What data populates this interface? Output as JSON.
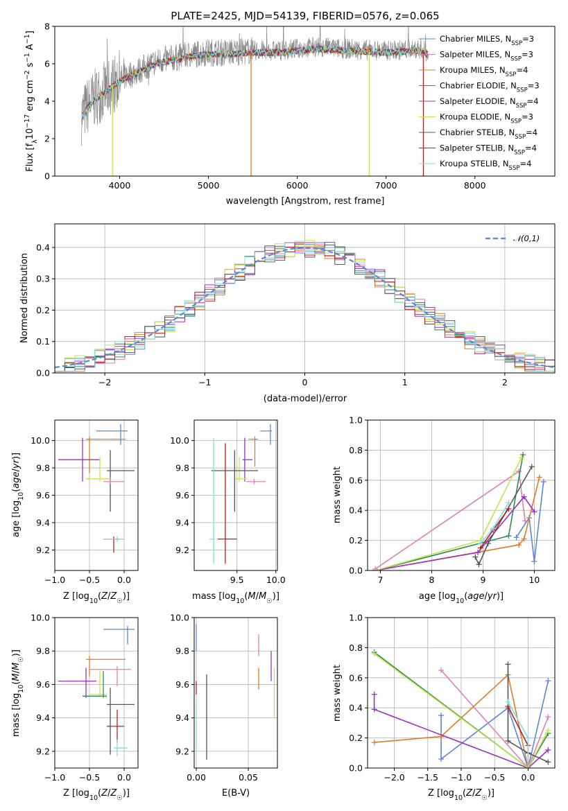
{
  "title": "PLATE=2425, MJD=54139, FIBERID=0576, z=0.065",
  "colors": {
    "chabrier_miles": "#5b86d9",
    "salpeter_miles": "#e07fb6",
    "kroupa_miles": "#e07b24",
    "chabrier_elodie": "#2e8b57",
    "salpeter_elodie": "#9b30c0",
    "kroupa_elodie": "#c6e24d",
    "chabrier_stelib": "#555555",
    "salpeter_stelib": "#b81f1f",
    "kroupa_stelib": "#7fdde3",
    "gaussian": "#5b86d9",
    "data": "#888888"
  },
  "chart_data": [
    {
      "type": "line",
      "id": "spectrum",
      "xlabel": "wavelength [Angstrom, rest frame]",
      "ylabel": "Flux [f_λ 10^-17 erg cm^-2 s^-1 A^-1]",
      "xlim": [
        3270,
        8900
      ],
      "ylim": [
        0,
        8
      ],
      "xticks": [
        4000,
        5000,
        6000,
        7000,
        8000
      ],
      "yticks": [
        0,
        2,
        4,
        6,
        8
      ],
      "grid": false,
      "legend_position": "right",
      "legend": [
        {
          "name": "Chabrier MILES",
          "nssp": 3
        },
        {
          "name": "Salpeter MILES",
          "nssp": 3
        },
        {
          "name": "Kroupa MILES",
          "nssp": 4
        },
        {
          "name": "Chabrier ELODIE",
          "nssp": 3
        },
        {
          "name": "Salpeter ELODIE",
          "nssp": 4
        },
        {
          "name": "Kroupa ELODIE",
          "nssp": 3
        },
        {
          "name": "Chabrier STELIB",
          "nssp": 4
        },
        {
          "name": "Salpeter STELIB",
          "nssp": 4
        },
        {
          "name": "Kroupa STELIB",
          "nssp": 4
        }
      ],
      "continuum": {
        "x": [
          3570,
          3650,
          3750,
          3850,
          3950,
          4050,
          4200,
          4400,
          4600,
          4800,
          5000,
          5200,
          5500,
          5800,
          6000,
          6200,
          6500,
          6800,
          7000,
          7200,
          7400,
          7500
        ],
        "y": [
          3.2,
          3.8,
          4.3,
          4.6,
          5.0,
          5.3,
          5.6,
          6.1,
          6.3,
          6.5,
          6.6,
          6.6,
          6.7,
          6.7,
          6.8,
          6.9,
          6.8,
          6.75,
          6.7,
          6.75,
          6.8,
          6.5
        ]
      },
      "model_dropouts": [
        {
          "x": 3920,
          "series": "kroupa_elodie"
        },
        {
          "x": 5480,
          "series": "kroupa_miles"
        },
        {
          "x": 6810,
          "series": "kroupa_elodie"
        },
        {
          "x": 7420,
          "series": "salpeter_stelib"
        }
      ]
    },
    {
      "type": "histogram",
      "id": "residuals",
      "xlabel": "(data-model)/error",
      "ylabel": "Normed distribution",
      "xlim": [
        -2.5,
        2.5
      ],
      "ylim": [
        0,
        0.475
      ],
      "xticks": [
        -2,
        -1,
        0,
        1,
        2
      ],
      "yticks": [
        0.0,
        0.1,
        0.2,
        0.3,
        0.4
      ],
      "grid": true,
      "legend_position": "top-right",
      "legend": [
        {
          "name": "𝒩(0,1)",
          "style": "dashed"
        }
      ],
      "bin_width": 0.1
    },
    {
      "type": "errorbar",
      "id": "age_vs_z",
      "xlabel": "Z [log10(Z/Z☉)]",
      "ylabel": "age  [log10(age/yr)]",
      "xlim": [
        -1.0,
        0.2
      ],
      "ylim": [
        9.05,
        10.15
      ],
      "xticks": [
        -1.0,
        -0.5,
        0.0
      ],
      "yticks": [
        9.2,
        9.4,
        9.6,
        9.8,
        10.0
      ],
      "grid": true,
      "points": [
        {
          "series": "chabrier_miles",
          "x": -0.05,
          "y": 10.07,
          "xerr": [
            0.35,
            0.1
          ],
          "yerr": [
            0.1,
            0.05
          ]
        },
        {
          "series": "kroupa_miles",
          "x": -0.5,
          "y": 10.01,
          "xerr": [
            0.05,
            0.52
          ],
          "yerr": [
            0.25,
            0.02
          ]
        },
        {
          "series": "salpeter_elodie",
          "x": -0.6,
          "y": 9.86,
          "xerr": [
            0.35,
            0.25
          ],
          "yerr": [
            0.16,
            0.16
          ]
        },
        {
          "series": "kroupa_elodie",
          "x": -0.35,
          "y": 9.72,
          "xerr": [
            0.2,
            0.15
          ],
          "yerr": [
            0.02,
            0.16
          ]
        },
        {
          "series": "chabrier_stelib",
          "x": -0.2,
          "y": 9.78,
          "xerr": [
            0.05,
            0.35
          ],
          "yerr": [
            0.3,
            0.15
          ]
        },
        {
          "series": "salpeter_miles",
          "x": -0.2,
          "y": 9.7,
          "xerr": [
            0.1,
            0.2
          ],
          "yerr": [
            0.02,
            0.03
          ]
        },
        {
          "series": "salpeter_stelib",
          "x": -0.15,
          "y": 9.28,
          "xerr": [
            0.15,
            0.1
          ],
          "yerr": [
            0.1,
            0.02
          ]
        },
        {
          "series": "kroupa_stelib",
          "x": -0.1,
          "y": 9.28,
          "xerr": [
            0.2,
            0.1
          ],
          "yerr": [
            0.02,
            0.02
          ]
        }
      ]
    },
    {
      "type": "errorbar",
      "id": "age_vs_mass",
      "xlabel": "mass [log10(M/M☉)]",
      "ylabel": "",
      "xlim": [
        8.95,
        10.02
      ],
      "ylim": [
        9.05,
        10.15
      ],
      "xticks": [
        9.5,
        10.0
      ],
      "yticks": [
        9.2,
        9.4,
        9.6,
        9.8,
        10.0
      ],
      "grid": true,
      "points": [
        {
          "series": "chabrier_miles",
          "x": 9.93,
          "y": 10.07,
          "xerr": [
            0.13,
            0.02
          ],
          "yerr": [
            0.1,
            0.05
          ]
        },
        {
          "series": "kroupa_miles",
          "x": 9.73,
          "y": 10.01,
          "xerr": [
            0.08,
            0.04
          ],
          "yerr": [
            0.2,
            0.02
          ]
        },
        {
          "series": "salpeter_elodie",
          "x": 9.6,
          "y": 9.86,
          "xerr": [
            0.03,
            0.1
          ],
          "yerr": [
            0.16,
            0.16
          ]
        },
        {
          "series": "kroupa_elodie",
          "x": 9.53,
          "y": 9.72,
          "xerr": [
            0.05,
            0.1
          ],
          "yerr": [
            0.02,
            0.16
          ]
        },
        {
          "series": "chabrier_stelib",
          "x": 9.47,
          "y": 9.78,
          "xerr": [
            0.3,
            0.3
          ],
          "yerr": [
            0.3,
            0.15
          ]
        },
        {
          "series": "salpeter_miles",
          "x": 9.72,
          "y": 9.7,
          "xerr": [
            0.1,
            0.15
          ],
          "yerr": [
            0.02,
            0.02
          ]
        },
        {
          "series": "salpeter_stelib",
          "x": 9.35,
          "y": 9.28,
          "xerr": [
            0.1,
            0.15
          ],
          "yerr": [
            0.18,
            0.7
          ]
        },
        {
          "series": "kroupa_stelib",
          "x": 9.2,
          "y": 9.28,
          "xerr": [
            0.05,
            0.02
          ],
          "yerr": [
            0.18,
            0.74
          ]
        }
      ]
    },
    {
      "type": "line",
      "id": "mass_weight_vs_age",
      "xlabel": "age  [log10(age/yr)]",
      "ylabel": "mass weight",
      "xlim": [
        6.75,
        10.4
      ],
      "ylim": [
        0,
        1.0
      ],
      "xticks": [
        7,
        8,
        9,
        10
      ],
      "yticks": [
        0.0,
        0.2,
        0.4,
        0.6,
        0.8,
        1.0
      ],
      "grid": true,
      "series": [
        {
          "key": "chabrier_miles",
          "x": [
            9.65,
            9.9,
            10.0,
            10.18
          ],
          "y": [
            0.22,
            0.35,
            0.06,
            0.59
          ]
        },
        {
          "key": "salpeter_miles",
          "x": [
            6.9,
            9.7,
            9.82
          ],
          "y": [
            0.01,
            0.66,
            0.33
          ]
        },
        {
          "key": "kroupa_miles",
          "x": [
            6.9,
            9.7,
            9.8,
            10.1
          ],
          "y": [
            0.0,
            0.17,
            0.21,
            0.62
          ]
        },
        {
          "key": "chabrier_elodie",
          "x": [
            6.9,
            9.5,
            9.78
          ],
          "y": [
            0.0,
            0.23,
            0.77
          ]
        },
        {
          "key": "salpeter_elodie",
          "x": [
            6.9,
            8.9,
            9.8,
            10.0
          ],
          "y": [
            0.0,
            0.12,
            0.49,
            0.39
          ]
        },
        {
          "key": "kroupa_elodie",
          "x": [
            6.9,
            8.95,
            9.75
          ],
          "y": [
            0.0,
            0.2,
            0.75
          ]
        },
        {
          "key": "chabrier_stelib",
          "x": [
            8.85,
            8.92,
            9.1,
            9.95
          ],
          "y": [
            0.09,
            0.04,
            0.18,
            0.69
          ]
        },
        {
          "key": "salpeter_stelib",
          "x": [
            8.95,
            9.2,
            9.5
          ],
          "y": [
            0.15,
            0.27,
            0.41
          ]
        },
        {
          "key": "kroupa_stelib",
          "x": [
            8.95,
            9.2,
            9.5
          ],
          "y": [
            0.18,
            0.28,
            0.45
          ]
        }
      ]
    },
    {
      "type": "errorbar",
      "id": "mass_vs_z",
      "xlabel": "Z [log10(Z/Z☉)]",
      "ylabel": "mass [log10(M/M☉)]",
      "xlim": [
        -1.0,
        0.2
      ],
      "ylim": [
        9.1,
        10.0
      ],
      "xticks": [
        -1.0,
        -0.5,
        0.0
      ],
      "yticks": [
        9.2,
        9.4,
        9.6,
        9.8,
        10.0
      ],
      "grid": true,
      "points": [
        {
          "series": "chabrier_miles",
          "x": 0.05,
          "y": 9.93,
          "xerr": [
            0.35,
            0.1
          ],
          "yerr": [
            0.09,
            0.02
          ]
        },
        {
          "series": "kroupa_miles",
          "x": -0.5,
          "y": 9.75,
          "xerr": [
            0.05,
            0.52
          ],
          "yerr": [
            0.1,
            0.02
          ]
        },
        {
          "series": "salpeter_miles",
          "x": -0.1,
          "y": 9.69,
          "xerr": [
            0.4,
            0.2
          ],
          "yerr": [
            0.1,
            0.02
          ]
        },
        {
          "series": "salpeter_elodie",
          "x": -0.55,
          "y": 9.62,
          "xerr": [
            0.4,
            0.15
          ],
          "yerr": [
            0.1,
            0.08
          ]
        },
        {
          "series": "kroupa_elodie",
          "x": -0.35,
          "y": 9.54,
          "xerr": [
            0.15,
            0.1
          ],
          "yerr": [
            0.01,
            0.15
          ]
        },
        {
          "series": "chabrier_elodie",
          "x": -0.3,
          "y": 9.53,
          "xerr": [
            0.3,
            0.05
          ],
          "yerr": [
            0.01,
            0.15
          ]
        },
        {
          "series": "chabrier_stelib",
          "x": -0.2,
          "y": 9.48,
          "xerr": [
            0.05,
            0.35
          ],
          "yerr": [
            0.3,
            0.1
          ]
        },
        {
          "series": "salpeter_stelib",
          "x": -0.1,
          "y": 9.35,
          "xerr": [
            0.15,
            0.1
          ],
          "yerr": [
            0.1,
            0.1
          ]
        },
        {
          "series": "kroupa_stelib",
          "x": -0.1,
          "y": 9.22,
          "xerr": [
            0.05,
            0.15
          ],
          "yerr": [
            0.05,
            0.05
          ]
        }
      ]
    },
    {
      "type": "errorbar",
      "id": "mass_vs_ebv",
      "xlabel": "E(B-V)",
      "ylabel": "",
      "xlim": [
        -0.002,
        0.078
      ],
      "ylim": [
        9.1,
        10.0
      ],
      "xticks": [
        0.0,
        0.05
      ],
      "yticks": [
        9.2,
        9.4,
        9.6,
        9.8,
        10.0
      ],
      "grid": true,
      "points": [
        {
          "series": "chabrier_miles",
          "x": 0.0,
          "y": 9.86,
          "yerr": [
            0.06,
            0.1
          ]
        },
        {
          "series": "salpeter_stelib",
          "x": 0.0,
          "y": 9.58,
          "yerr": [
            0.04,
            0.04
          ]
        },
        {
          "series": "kroupa_stelib",
          "x": 0.0,
          "y": 9.3,
          "yerr": [
            0.1,
            0.2
          ]
        },
        {
          "series": "chabrier_stelib",
          "x": 0.01,
          "y": 9.4,
          "yerr": [
            0.25,
            0.26
          ]
        },
        {
          "series": "salpeter_miles",
          "x": 0.06,
          "y": 9.82,
          "yerr": [
            0.05,
            0.08
          ]
        },
        {
          "series": "kroupa_miles",
          "x": 0.06,
          "y": 9.65,
          "yerr": [
            0.08,
            0.05
          ]
        },
        {
          "series": "salpeter_elodie",
          "x": 0.072,
          "y": 9.7,
          "yerr": [
            0.08,
            0.1
          ]
        },
        {
          "series": "kroupa_elodie",
          "x": 0.075,
          "y": 9.55,
          "yerr": [
            0.15,
            0.15
          ]
        }
      ]
    },
    {
      "type": "line",
      "id": "mass_weight_vs_z",
      "xlabel": "Z [log10(Z/Z☉)]",
      "ylabel": "mass weight",
      "xlim": [
        -2.4,
        0.4
      ],
      "ylim": [
        0,
        1.0
      ],
      "xticks": [
        -2.0,
        -1.5,
        -1.0,
        -0.5,
        0.0
      ],
      "yticks": [
        0.0,
        0.2,
        0.4,
        0.6,
        0.8,
        1.0
      ],
      "grid": true,
      "series": [
        {
          "key": "chabrier_miles",
          "x": [
            -1.3,
            -1.3,
            -0.3,
            0.0,
            0.3
          ],
          "y": [
            0.35,
            0.06,
            0.4,
            0.0,
            0.58
          ]
        },
        {
          "key": "salpeter_miles",
          "x": [
            -1.3,
            0.0,
            0.3
          ],
          "y": [
            0.65,
            0.0,
            0.34
          ]
        },
        {
          "key": "kroupa_miles",
          "x": [
            -2.3,
            -1.3,
            -0.3,
            0.0
          ],
          "y": [
            0.17,
            0.21,
            0.62,
            0.0
          ]
        },
        {
          "key": "chabrier_elodie",
          "x": [
            -2.3,
            0.0,
            0.3
          ],
          "y": [
            0.77,
            0.0,
            0.23
          ]
        },
        {
          "key": "salpeter_elodie",
          "x": [
            -2.3,
            -2.3,
            0.0,
            0.3
          ],
          "y": [
            0.49,
            0.39,
            0.0,
            0.12
          ]
        },
        {
          "key": "kroupa_elodie",
          "x": [
            -2.3,
            0.0,
            0.3
          ],
          "y": [
            0.76,
            0.0,
            0.25
          ]
        },
        {
          "key": "chabrier_stelib",
          "x": [
            -0.3,
            -0.3,
            0.0,
            0.3
          ],
          "y": [
            0.69,
            0.18,
            0.1,
            0.04
          ]
        },
        {
          "key": "salpeter_stelib",
          "x": [
            -0.3,
            0.0,
            0.0
          ],
          "y": [
            0.41,
            0.15,
            0.0
          ]
        },
        {
          "key": "kroupa_stelib",
          "x": [
            -0.3,
            0.0,
            0.0
          ],
          "y": [
            0.44,
            0.2,
            0.0
          ]
        }
      ]
    }
  ]
}
